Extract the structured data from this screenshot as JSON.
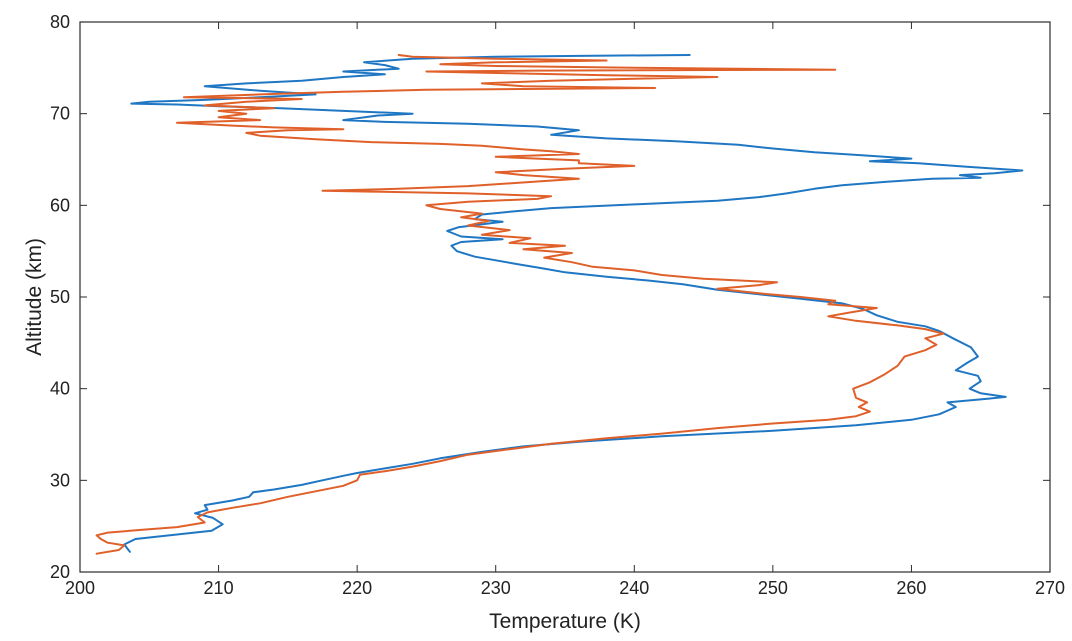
{
  "chart_data": {
    "type": "line",
    "title": "",
    "xlabel": "Temperature (K)",
    "ylabel": "Altitude (km)",
    "xlim": [
      200,
      270
    ],
    "ylim": [
      20,
      80
    ],
    "xticks": [
      "200",
      "210",
      "220",
      "230",
      "240",
      "250",
      "260",
      "270"
    ],
    "yticks": [
      "20",
      "30",
      "40",
      "50",
      "60",
      "70",
      "80"
    ],
    "grid": false,
    "legend": "none",
    "series": [
      {
        "color": "#1f77c4",
        "points": [
          [
            203.6,
            22.2
          ],
          [
            203.2,
            23.0
          ],
          [
            204.0,
            23.6
          ],
          [
            206.5,
            24.0
          ],
          [
            209.5,
            24.5
          ],
          [
            210.3,
            25.2
          ],
          [
            209.6,
            25.9
          ],
          [
            208.3,
            26.4
          ],
          [
            209.2,
            26.8
          ],
          [
            209.0,
            27.3
          ],
          [
            211.0,
            27.8
          ],
          [
            212.2,
            28.2
          ],
          [
            212.5,
            28.7
          ],
          [
            214.0,
            29.0
          ],
          [
            216.0,
            29.5
          ],
          [
            217.5,
            30.0
          ],
          [
            219.0,
            30.5
          ],
          [
            220.0,
            30.8
          ],
          [
            222.0,
            31.3
          ],
          [
            224.0,
            31.8
          ],
          [
            226.0,
            32.4
          ],
          [
            229.0,
            33.1
          ],
          [
            232.0,
            33.7
          ],
          [
            236.0,
            34.2
          ],
          [
            242.0,
            34.8
          ],
          [
            250.0,
            35.4
          ],
          [
            256.0,
            36.0
          ],
          [
            260.0,
            36.6
          ],
          [
            262.0,
            37.2
          ],
          [
            263.2,
            38.0
          ],
          [
            262.6,
            38.5
          ],
          [
            265.5,
            38.9
          ],
          [
            266.8,
            39.1
          ],
          [
            265.0,
            39.5
          ],
          [
            264.2,
            40.0
          ],
          [
            265.0,
            40.8
          ],
          [
            264.8,
            41.4
          ],
          [
            263.2,
            42.0
          ],
          [
            264.0,
            42.8
          ],
          [
            264.8,
            43.5
          ],
          [
            264.3,
            44.5
          ],
          [
            263.0,
            45.5
          ],
          [
            262.0,
            46.3
          ],
          [
            261.0,
            46.8
          ],
          [
            259.0,
            47.3
          ],
          [
            257.5,
            48.0
          ],
          [
            256.5,
            48.7
          ],
          [
            255.0,
            49.3
          ],
          [
            252.0,
            49.8
          ],
          [
            249.0,
            50.3
          ],
          [
            246.0,
            50.8
          ],
          [
            243.5,
            51.4
          ],
          [
            241.0,
            51.8
          ],
          [
            238.0,
            52.2
          ],
          [
            235.0,
            52.7
          ],
          [
            233.5,
            53.1
          ],
          [
            231.5,
            53.6
          ],
          [
            230.0,
            54.0
          ],
          [
            228.5,
            54.4
          ],
          [
            227.2,
            55.0
          ],
          [
            226.8,
            55.6
          ],
          [
            227.5,
            56.0
          ],
          [
            230.5,
            56.3
          ],
          [
            227.5,
            56.6
          ],
          [
            226.5,
            57.2
          ],
          [
            227.3,
            57.6
          ],
          [
            230.5,
            58.2
          ],
          [
            228.5,
            58.5
          ],
          [
            229.0,
            59.0
          ],
          [
            231.0,
            59.3
          ],
          [
            234.0,
            59.7
          ],
          [
            240.0,
            60.1
          ],
          [
            246.0,
            60.5
          ],
          [
            249.0,
            60.9
          ],
          [
            251.0,
            61.3
          ],
          [
            253.0,
            61.8
          ],
          [
            255.0,
            62.2
          ],
          [
            258.5,
            62.6
          ],
          [
            261.5,
            62.9
          ],
          [
            265.0,
            63.0
          ],
          [
            263.5,
            63.3
          ],
          [
            266.0,
            63.5
          ],
          [
            268.0,
            63.8
          ],
          [
            264.0,
            64.2
          ],
          [
            260.5,
            64.6
          ],
          [
            257.0,
            64.8
          ],
          [
            260.0,
            65.1
          ],
          [
            256.0,
            65.5
          ],
          [
            253.0,
            65.8
          ],
          [
            250.0,
            66.2
          ],
          [
            247.5,
            66.6
          ],
          [
            243.0,
            67.0
          ],
          [
            238.0,
            67.3
          ],
          [
            234.0,
            67.7
          ],
          [
            236.0,
            68.2
          ],
          [
            233.0,
            68.6
          ],
          [
            228.0,
            68.9
          ],
          [
            222.0,
            69.1
          ],
          [
            219.0,
            69.3
          ],
          [
            221.5,
            69.8
          ],
          [
            224.0,
            70.0
          ],
          [
            219.0,
            70.3
          ],
          [
            214.5,
            70.6
          ],
          [
            210.0,
            70.8
          ],
          [
            207.0,
            71.0
          ],
          [
            203.7,
            71.1
          ],
          [
            205.0,
            71.3
          ],
          [
            209.0,
            71.5
          ],
          [
            213.0,
            71.8
          ],
          [
            217.0,
            72.1
          ],
          [
            213.0,
            72.5
          ],
          [
            209.0,
            73.0
          ],
          [
            212.0,
            73.3
          ],
          [
            216.0,
            73.6
          ],
          [
            219.0,
            74.0
          ],
          [
            222.0,
            74.3
          ],
          [
            219.0,
            74.6
          ],
          [
            223.0,
            74.9
          ],
          [
            222.0,
            75.3
          ],
          [
            220.5,
            75.6
          ],
          [
            224.0,
            76.0
          ],
          [
            230.0,
            76.2
          ],
          [
            236.0,
            76.3
          ],
          [
            244.0,
            76.4
          ]
        ]
      },
      {
        "color": "#e0602a",
        "points": [
          [
            201.2,
            22.0
          ],
          [
            202.8,
            22.4
          ],
          [
            203.2,
            22.9
          ],
          [
            202.0,
            23.2
          ],
          [
            201.5,
            23.6
          ],
          [
            201.2,
            24.0
          ],
          [
            202.0,
            24.3
          ],
          [
            204.5,
            24.6
          ],
          [
            207.0,
            24.9
          ],
          [
            209.0,
            25.4
          ],
          [
            208.5,
            26.0
          ],
          [
            209.2,
            26.5
          ],
          [
            211.0,
            27.0
          ],
          [
            213.0,
            27.5
          ],
          [
            215.0,
            28.2
          ],
          [
            217.0,
            28.8
          ],
          [
            219.0,
            29.4
          ],
          [
            220.0,
            30.0
          ],
          [
            220.2,
            30.6
          ],
          [
            222.0,
            31.0
          ],
          [
            224.0,
            31.5
          ],
          [
            226.0,
            32.1
          ],
          [
            228.0,
            32.8
          ],
          [
            231.0,
            33.4
          ],
          [
            234.0,
            34.0
          ],
          [
            238.0,
            34.6
          ],
          [
            242.0,
            35.1
          ],
          [
            246.0,
            35.7
          ],
          [
            250.0,
            36.2
          ],
          [
            254.0,
            36.6
          ],
          [
            256.0,
            37.0
          ],
          [
            257.0,
            37.5
          ],
          [
            256.2,
            38.0
          ],
          [
            256.8,
            38.5
          ],
          [
            256.0,
            39.0
          ],
          [
            255.8,
            40.0
          ],
          [
            257.0,
            40.7
          ],
          [
            258.0,
            41.5
          ],
          [
            259.0,
            42.5
          ],
          [
            259.5,
            43.5
          ],
          [
            261.0,
            44.2
          ],
          [
            261.8,
            44.8
          ],
          [
            261.0,
            45.5
          ],
          [
            262.3,
            46.0
          ],
          [
            261.0,
            46.5
          ],
          [
            259.0,
            46.9
          ],
          [
            256.0,
            47.4
          ],
          [
            254.0,
            47.9
          ],
          [
            255.5,
            48.3
          ],
          [
            257.5,
            48.8
          ],
          [
            254.0,
            49.2
          ],
          [
            254.5,
            49.6
          ],
          [
            252.0,
            50.0
          ],
          [
            249.0,
            50.4
          ],
          [
            246.0,
            50.9
          ],
          [
            249.0,
            51.3
          ],
          [
            250.3,
            51.6
          ],
          [
            245.0,
            52.0
          ],
          [
            242.0,
            52.4
          ],
          [
            240.0,
            52.9
          ],
          [
            237.0,
            53.3
          ],
          [
            235.5,
            53.8
          ],
          [
            233.5,
            54.3
          ],
          [
            235.5,
            54.8
          ],
          [
            232.0,
            55.2
          ],
          [
            235.0,
            55.6
          ],
          [
            231.0,
            55.9
          ],
          [
            232.5,
            56.4
          ],
          [
            229.0,
            56.8
          ],
          [
            231.0,
            57.3
          ],
          [
            228.0,
            57.8
          ],
          [
            229.5,
            58.3
          ],
          [
            227.5,
            58.7
          ],
          [
            229.0,
            59.1
          ],
          [
            226.0,
            59.6
          ],
          [
            225.0,
            60.0
          ],
          [
            228.0,
            60.4
          ],
          [
            233.0,
            60.7
          ],
          [
            234.0,
            61.0
          ],
          [
            228.0,
            61.3
          ],
          [
            221.0,
            61.5
          ],
          [
            217.5,
            61.6
          ],
          [
            223.0,
            61.8
          ],
          [
            228.0,
            62.1
          ],
          [
            233.0,
            62.6
          ],
          [
            236.0,
            62.9
          ],
          [
            232.0,
            63.3
          ],
          [
            230.0,
            63.6
          ],
          [
            235.0,
            64.0
          ],
          [
            240.0,
            64.3
          ],
          [
            236.0,
            64.6
          ],
          [
            236.0,
            64.9
          ],
          [
            233.0,
            65.1
          ],
          [
            230.0,
            65.3
          ],
          [
            236.0,
            65.6
          ],
          [
            234.0,
            65.9
          ],
          [
            232.0,
            66.1
          ],
          [
            229.0,
            66.5
          ],
          [
            226.0,
            66.7
          ],
          [
            221.0,
            66.9
          ],
          [
            217.0,
            67.2
          ],
          [
            213.0,
            67.6
          ],
          [
            212.0,
            67.9
          ],
          [
            215.0,
            68.2
          ],
          [
            219.0,
            68.3
          ],
          [
            214.0,
            68.5
          ],
          [
            211.0,
            68.7
          ],
          [
            207.0,
            69.0
          ],
          [
            213.0,
            69.3
          ],
          [
            210.0,
            69.6
          ],
          [
            212.0,
            70.0
          ],
          [
            210.0,
            70.3
          ],
          [
            214.0,
            70.6
          ],
          [
            209.0,
            70.9
          ],
          [
            212.0,
            71.3
          ],
          [
            216.0,
            71.6
          ],
          [
            207.5,
            71.8
          ],
          [
            213.0,
            72.1
          ],
          [
            219.0,
            72.4
          ],
          [
            225.0,
            72.6
          ],
          [
            241.5,
            72.8
          ],
          [
            232.0,
            73.0
          ],
          [
            229.0,
            73.3
          ],
          [
            234.0,
            73.6
          ],
          [
            240.0,
            73.8
          ],
          [
            246.0,
            74.0
          ],
          [
            238.0,
            74.2
          ],
          [
            231.0,
            74.4
          ],
          [
            225.0,
            74.6
          ],
          [
            233.0,
            74.7
          ],
          [
            254.5,
            74.8
          ],
          [
            240.0,
            75.0
          ],
          [
            230.0,
            75.2
          ],
          [
            226.0,
            75.4
          ],
          [
            230.0,
            75.6
          ],
          [
            238.0,
            75.8
          ],
          [
            230.0,
            76.0
          ],
          [
            224.0,
            76.2
          ],
          [
            223.0,
            76.4
          ]
        ]
      }
    ]
  }
}
